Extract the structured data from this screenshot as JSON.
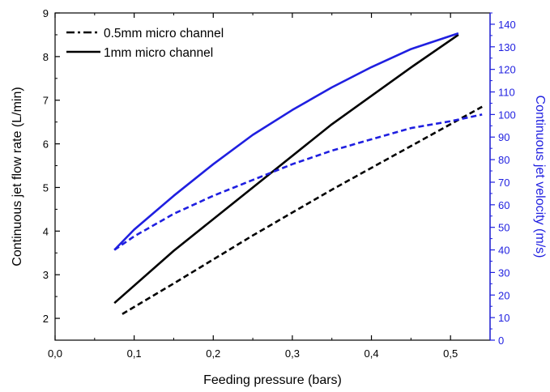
{
  "chart_data": {
    "type": "line",
    "xlabel": "Feeding pressure (bars)",
    "ylabel_left": "Continuous jet flow rate (L/min)",
    "ylabel_right": "Continuous jet velocity (m/s)",
    "xlim": [
      0.0,
      0.55
    ],
    "ylim_left": [
      1.5,
      9.0
    ],
    "ylim_right": [
      0,
      145
    ],
    "x_ticks": [
      "0,0",
      "0,1",
      "0,2",
      "0,3",
      "0,4",
      "0,5"
    ],
    "y_left_ticks": [
      "2",
      "3",
      "4",
      "5",
      "6",
      "7",
      "8",
      "9"
    ],
    "y_right_ticks": [
      "0",
      "10",
      "20",
      "30",
      "40",
      "50",
      "60",
      "70",
      "80",
      "90",
      "100",
      "110",
      "120",
      "130",
      "140"
    ],
    "grid": false,
    "legend_position": "top-left",
    "legend": [
      {
        "label": "0.5mm micro channel",
        "style": "dash-dot",
        "color": "#000000"
      },
      {
        "label": "1mm micro channel",
        "style": "solid",
        "color": "#000000"
      }
    ],
    "colors": {
      "left_axis": "#000000",
      "right_axis": "#1f1fe0"
    },
    "series": [
      {
        "style": "solid",
        "color": "#000000",
        "axis": "left",
        "x": [
          0.075,
          0.15,
          0.25,
          0.35,
          0.45,
          0.51
        ],
        "y": [
          2.35,
          3.55,
          5.0,
          6.45,
          7.75,
          8.5
        ]
      },
      {
        "style": "dashed",
        "color": "#000000",
        "axis": "left",
        "x": [
          0.085,
          0.15,
          0.25,
          0.35,
          0.45,
          0.54
        ],
        "y": [
          2.1,
          2.8,
          3.9,
          4.95,
          5.95,
          6.85
        ]
      },
      {
        "style": "solid",
        "color": "#1f1fe0",
        "axis": "right",
        "x": [
          0.075,
          0.1,
          0.15,
          0.2,
          0.25,
          0.3,
          0.35,
          0.4,
          0.45,
          0.51
        ],
        "y": [
          40,
          49,
          64,
          78,
          91,
          102,
          112,
          121,
          129,
          136
        ]
      },
      {
        "style": "dashed",
        "color": "#1f1fe0",
        "axis": "right",
        "x": [
          0.075,
          0.1,
          0.15,
          0.2,
          0.25,
          0.3,
          0.35,
          0.4,
          0.45,
          0.5,
          0.54
        ],
        "y": [
          40,
          46,
          56,
          64,
          71,
          78,
          84,
          89,
          94,
          97,
          100
        ]
      }
    ]
  }
}
